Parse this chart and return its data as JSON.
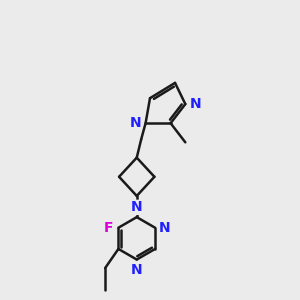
{
  "background_color": "#ebebeb",
  "bond_color": "#1a1a1a",
  "nitrogen_color": "#2020ff",
  "fluorine_color": "#dd00dd",
  "line_width": 1.8,
  "dbo": 0.09,
  "font_size": 10,
  "figsize": [
    3.0,
    3.0
  ],
  "dpi": 100,
  "xlim": [
    1.0,
    6.5
  ],
  "ylim": [
    0.5,
    10.5
  ]
}
